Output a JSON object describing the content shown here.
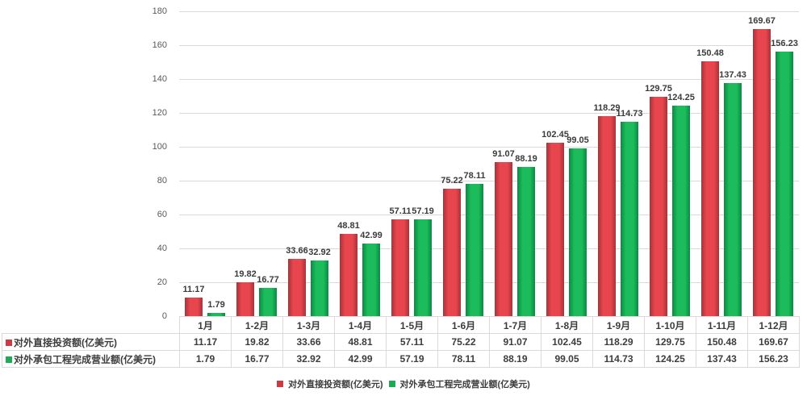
{
  "chart_data": {
    "type": "bar",
    "title": "",
    "xlabel": "",
    "ylabel": "",
    "categories": [
      "1月",
      "1-2月",
      "1-3月",
      "1-4月",
      "1-5月",
      "1-6月",
      "1-7月",
      "1-8月",
      "1-9月",
      "1-10月",
      "1-11月",
      "1-12月"
    ],
    "series": [
      {
        "name": "对外直接投资额(亿美元)",
        "color": "#e8464f",
        "edge_color": "#a93239",
        "swatch_color": "#cc3b44",
        "values": [
          11.17,
          19.82,
          33.66,
          48.81,
          57.11,
          75.22,
          91.07,
          102.45,
          118.29,
          129.75,
          150.48,
          169.67
        ]
      },
      {
        "name": "对外承包工程完成营业额(亿美元)",
        "color": "#1cbb5c",
        "edge_color": "#0c8a43",
        "swatch_color": "#22a955",
        "values": [
          1.79,
          16.77,
          32.92,
          42.99,
          57.19,
          78.11,
          88.19,
          99.05,
          114.73,
          124.25,
          137.43,
          156.23
        ]
      }
    ],
    "ylim": [
      0,
      180
    ],
    "yticks": [
      0,
      20,
      40,
      60,
      80,
      100,
      120,
      140,
      160,
      180
    ],
    "grid": true,
    "data_labels": true,
    "value_decimals": 2,
    "legend_position": "bottom",
    "gridline_color": "#d9d9d9",
    "label_text_color": "#3b3b3b"
  }
}
